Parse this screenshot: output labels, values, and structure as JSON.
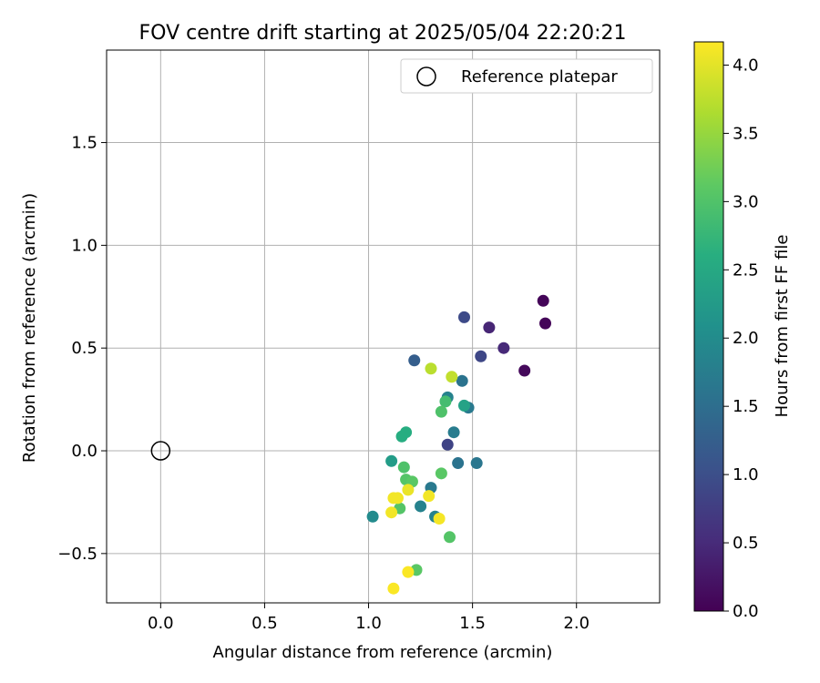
{
  "chart_data": {
    "type": "scatter",
    "title": "FOV centre drift starting at 2025/05/04 22:20:21",
    "xlabel": "Angular distance from reference (arcmin)",
    "ylabel": "Rotation from reference (arcmin)",
    "xlim": [
      -0.26,
      2.4
    ],
    "ylim": [
      -0.74,
      1.95
    ],
    "xticks": [
      0.0,
      0.5,
      1.0,
      1.5,
      2.0
    ],
    "xtick_labels": [
      "0.0",
      "0.5",
      "1.0",
      "1.5",
      "2.0"
    ],
    "yticks": [
      -0.5,
      0.0,
      0.5,
      1.0,
      1.5
    ],
    "ytick_labels": [
      "−0.5",
      "0.0",
      "0.5",
      "1.0",
      "1.5"
    ],
    "grid": true,
    "legend": {
      "placement": "upper-right",
      "entries": [
        {
          "label": "Reference platepar",
          "marker": "open-circle"
        }
      ]
    },
    "reference_point": {
      "x": 0.0,
      "y": 0.0
    },
    "colorbar": {
      "label": "Hours from first FF file",
      "colormap": "viridis",
      "range": [
        0,
        4.17
      ],
      "ticks": [
        0.0,
        0.5,
        1.0,
        1.5,
        2.0,
        2.5,
        3.0,
        3.5,
        4.0
      ],
      "tick_labels": [
        "0.0",
        "0.5",
        "1.0",
        "1.5",
        "2.0",
        "2.5",
        "3.0",
        "3.5",
        "4.0"
      ]
    },
    "points": [
      {
        "x": 1.84,
        "y": 0.73,
        "c": 0.05
      },
      {
        "x": 1.85,
        "y": 0.62,
        "c": 0.05
      },
      {
        "x": 1.75,
        "y": 0.39,
        "c": 0.1
      },
      {
        "x": 1.58,
        "y": 0.6,
        "c": 0.45
      },
      {
        "x": 1.65,
        "y": 0.5,
        "c": 0.5
      },
      {
        "x": 1.46,
        "y": 0.65,
        "c": 0.95
      },
      {
        "x": 1.54,
        "y": 0.46,
        "c": 0.9
      },
      {
        "x": 1.38,
        "y": 0.03,
        "c": 0.85
      },
      {
        "x": 1.22,
        "y": 0.44,
        "c": 1.25
      },
      {
        "x": 1.45,
        "y": 0.34,
        "c": 1.6
      },
      {
        "x": 1.48,
        "y": 0.21,
        "c": 1.7
      },
      {
        "x": 1.38,
        "y": 0.26,
        "c": 1.85
      },
      {
        "x": 1.41,
        "y": 0.09,
        "c": 1.75
      },
      {
        "x": 1.43,
        "y": -0.06,
        "c": 1.6
      },
      {
        "x": 1.52,
        "y": -0.06,
        "c": 1.65
      },
      {
        "x": 1.3,
        "y": -0.18,
        "c": 1.7
      },
      {
        "x": 1.25,
        "y": -0.27,
        "c": 1.85
      },
      {
        "x": 1.32,
        "y": -0.32,
        "c": 1.85
      },
      {
        "x": 1.02,
        "y": -0.32,
        "c": 2.0
      },
      {
        "x": 1.11,
        "y": -0.05,
        "c": 2.3
      },
      {
        "x": 1.46,
        "y": 0.22,
        "c": 2.4
      },
      {
        "x": 1.18,
        "y": 0.09,
        "c": 2.6
      },
      {
        "x": 1.16,
        "y": 0.07,
        "c": 2.6
      },
      {
        "x": 1.37,
        "y": 0.24,
        "c": 2.9
      },
      {
        "x": 1.35,
        "y": 0.19,
        "c": 3.0
      },
      {
        "x": 1.17,
        "y": -0.08,
        "c": 3.0
      },
      {
        "x": 1.18,
        "y": -0.14,
        "c": 3.05
      },
      {
        "x": 1.21,
        "y": -0.15,
        "c": 3.1
      },
      {
        "x": 1.15,
        "y": -0.28,
        "c": 3.05
      },
      {
        "x": 1.35,
        "y": -0.11,
        "c": 3.1
      },
      {
        "x": 1.39,
        "y": -0.42,
        "c": 3.05
      },
      {
        "x": 1.23,
        "y": -0.58,
        "c": 3.1
      },
      {
        "x": 1.3,
        "y": 0.4,
        "c": 3.75
      },
      {
        "x": 1.4,
        "y": 0.36,
        "c": 3.8
      },
      {
        "x": 1.19,
        "y": -0.19,
        "c": 4.05
      },
      {
        "x": 1.12,
        "y": -0.23,
        "c": 4.1
      },
      {
        "x": 1.14,
        "y": -0.23,
        "c": 4.1
      },
      {
        "x": 1.11,
        "y": -0.3,
        "c": 4.1
      },
      {
        "x": 1.29,
        "y": -0.22,
        "c": 4.1
      },
      {
        "x": 1.34,
        "y": -0.33,
        "c": 4.12
      },
      {
        "x": 1.12,
        "y": -0.67,
        "c": 4.15
      },
      {
        "x": 1.19,
        "y": -0.59,
        "c": 4.15
      }
    ]
  }
}
